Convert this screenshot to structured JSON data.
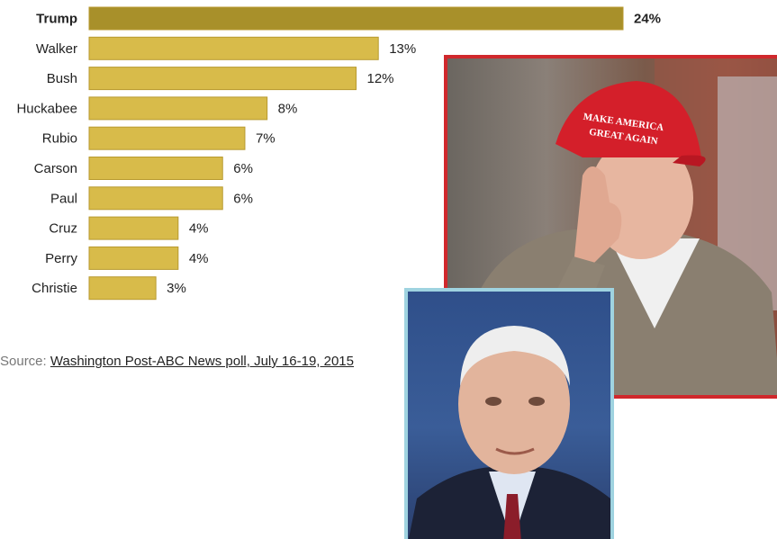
{
  "chart_data": {
    "type": "bar",
    "orientation": "horizontal",
    "categories": [
      "Trump",
      "Walker",
      "Bush",
      "Huckabee",
      "Rubio",
      "Carson",
      "Paul",
      "Cruz",
      "Perry",
      "Christie"
    ],
    "values": [
      24,
      13,
      12,
      8,
      7,
      6,
      6,
      4,
      4,
      3
    ],
    "value_labels": [
      "24%",
      "13%",
      "12%",
      "8%",
      "7%",
      "6%",
      "6%",
      "4%",
      "4%",
      "3%"
    ],
    "highlight_category": "Trump",
    "colors": {
      "highlight": "#a8902a",
      "bar": "#d8bb4a",
      "bar_edge": "#b89a30"
    },
    "xlim": [
      0,
      24
    ],
    "title": "",
    "xlabel": "",
    "ylabel": "",
    "grid": false
  },
  "source": {
    "prefix": "Source:",
    "link_text": "Washington Post-ABC News poll, July 16-19, 2015"
  },
  "photos": [
    {
      "subject": "man in red cap pointing",
      "cap_text": "MAKE AMERICA GREAT AGAIN",
      "border_color": "#d0282c"
    },
    {
      "subject": "portrait of man in suit",
      "border_color": "#9fd3e0"
    }
  ]
}
